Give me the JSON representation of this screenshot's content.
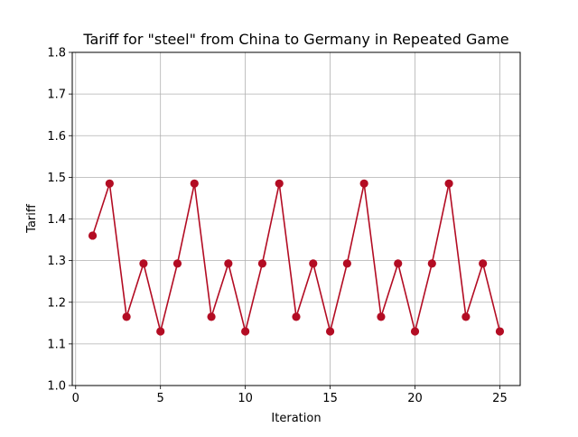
{
  "chart_data": {
    "type": "line",
    "title": "Tariff for \"steel\" from China to Germany in Repeated Game",
    "xlabel": "Iteration",
    "ylabel": "Tariff",
    "xlim": [
      -0.2,
      26.2
    ],
    "ylim": [
      1.0,
      1.8
    ],
    "x_ticks": [
      0,
      5,
      10,
      15,
      20,
      25
    ],
    "x_tick_labels": [
      "0",
      "5",
      "10",
      "15",
      "20",
      "25"
    ],
    "y_ticks": [
      1.0,
      1.1,
      1.2,
      1.3,
      1.4,
      1.5,
      1.6,
      1.7,
      1.8
    ],
    "y_tick_labels": [
      "1.0",
      "1.1",
      "1.2",
      "1.3",
      "1.4",
      "1.5",
      "1.6",
      "1.7",
      "1.8"
    ],
    "grid": true,
    "legend": "none",
    "series": [
      {
        "color": "#b30c23",
        "marker": "circle",
        "x": [
          1,
          2,
          3,
          4,
          5,
          6,
          7,
          8,
          9,
          10,
          11,
          12,
          13,
          14,
          15,
          16,
          17,
          18,
          19,
          20,
          21,
          22,
          23,
          24,
          25
        ],
        "values": [
          1.36,
          1.485,
          1.165,
          1.293,
          1.13,
          1.293,
          1.485,
          1.165,
          1.293,
          1.13,
          1.293,
          1.485,
          1.165,
          1.293,
          1.13,
          1.293,
          1.485,
          1.165,
          1.293,
          1.13,
          1.293,
          1.485,
          1.165,
          1.293,
          1.13
        ]
      }
    ]
  }
}
